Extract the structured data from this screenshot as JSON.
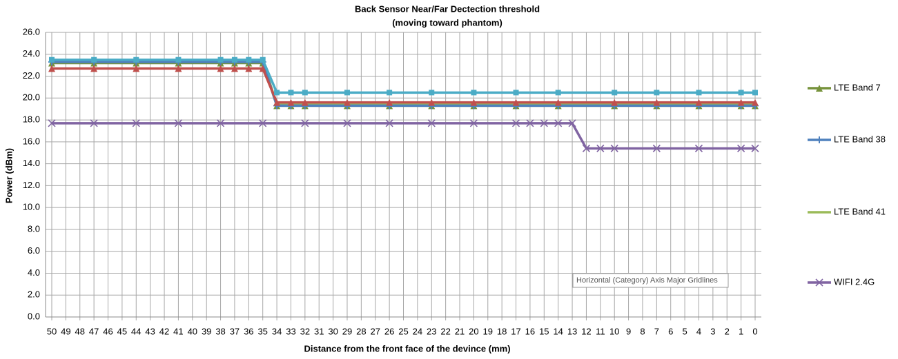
{
  "chart_data": {
    "type": "line",
    "title": "Back Sensor Near/Far Dectection threshold",
    "subtitle": "(moving toward phantom)",
    "x_label": "Distance from the front face of the devince (mm)",
    "y_label": "Power (dBm)",
    "tooltip": "Horizontal (Category) Axis Major Gridlines",
    "grid": true,
    "xlim": [
      50,
      0
    ],
    "xticks": [
      50,
      49,
      48,
      47,
      46,
      45,
      44,
      43,
      42,
      41,
      40,
      39,
      38,
      37,
      36,
      35,
      34,
      33,
      32,
      31,
      30,
      29,
      28,
      27,
      26,
      25,
      24,
      23,
      22,
      21,
      20,
      19,
      18,
      17,
      16,
      15,
      14,
      13,
      12,
      11,
      10,
      9,
      8,
      7,
      6,
      5,
      4,
      3,
      2,
      1,
      0
    ],
    "ylim": [
      0,
      26
    ],
    "yticks": [
      {
        "value": 0,
        "label": "0.0"
      },
      {
        "value": 2,
        "label": "2.0"
      },
      {
        "value": 4,
        "label": "4.0"
      },
      {
        "value": 6,
        "label": "6.0"
      },
      {
        "value": 8,
        "label": "8.0"
      },
      {
        "value": 10,
        "label": "10.0"
      },
      {
        "value": 12,
        "label": "12.0"
      },
      {
        "value": 14,
        "label": "14.0"
      },
      {
        "value": 16,
        "label": "16.0"
      },
      {
        "value": 18,
        "label": "18.0"
      },
      {
        "value": 20,
        "label": "20.0"
      },
      {
        "value": 22,
        "label": "22.0"
      },
      {
        "value": 24,
        "label": "24.0"
      },
      {
        "value": 26,
        "label": "26.0"
      }
    ],
    "series": [
      {
        "name": "LTE Band 41",
        "color": "#9bbb59",
        "marker": "none",
        "x": [
          50,
          47,
          44,
          41,
          38,
          37,
          36,
          35,
          34,
          33,
          32,
          29,
          26,
          23,
          20,
          17,
          14,
          10,
          7,
          4,
          1,
          0
        ],
        "values": [
          23.4,
          23.4,
          23.4,
          23.4,
          23.4,
          23.4,
          23.4,
          23.4,
          19.4,
          19.4,
          19.4,
          19.4,
          19.4,
          19.4,
          19.4,
          19.4,
          19.4,
          19.4,
          19.4,
          19.4,
          19.4,
          19.4
        ]
      },
      {
        "name": "LTE Band 7",
        "color": "#77933c",
        "marker": "triangle",
        "x": [
          50,
          47,
          44,
          41,
          38,
          37,
          36,
          35,
          34,
          33,
          32,
          29,
          26,
          23,
          20,
          17,
          14,
          10,
          7,
          4,
          1,
          0
        ],
        "values": [
          23.2,
          23.2,
          23.2,
          23.2,
          23.2,
          23.2,
          23.2,
          23.2,
          19.3,
          19.3,
          19.3,
          19.3,
          19.3,
          19.3,
          19.3,
          19.3,
          19.3,
          19.3,
          19.3,
          19.3,
          19.3,
          19.3
        ]
      },
      {
        "name": "LTE Band 38",
        "color": "#4f81bd",
        "marker": "plus",
        "x": [
          50,
          47,
          44,
          41,
          38,
          37,
          36,
          35,
          34,
          33,
          32,
          29,
          26,
          23,
          20,
          17,
          14,
          10,
          7,
          4,
          1,
          0
        ],
        "values": [
          23.3,
          23.3,
          23.3,
          23.3,
          23.3,
          23.3,
          23.3,
          23.3,
          19.3,
          19.3,
          19.3,
          19.3,
          19.3,
          19.3,
          19.3,
          19.3,
          19.3,
          19.3,
          19.3,
          19.3,
          19.3,
          19.3
        ]
      },
      {
        "color": "#c0504d",
        "marker": "triangle",
        "x": [
          50,
          47,
          44,
          41,
          38,
          37,
          36,
          35,
          34,
          33,
          32,
          29,
          26,
          23,
          20,
          17,
          14,
          10,
          7,
          4,
          1,
          0
        ],
        "values": [
          22.7,
          22.7,
          22.7,
          22.7,
          22.7,
          22.7,
          22.7,
          22.7,
          19.6,
          19.6,
          19.6,
          19.6,
          19.6,
          19.6,
          19.6,
          19.6,
          19.6,
          19.6,
          19.6,
          19.6,
          19.6,
          19.6
        ]
      },
      {
        "color": "#4bacc6",
        "marker": "square",
        "x": [
          50,
          47,
          44,
          41,
          38,
          37,
          36,
          35,
          34,
          33,
          32,
          29,
          26,
          23,
          20,
          17,
          14,
          10,
          7,
          4,
          1,
          0
        ],
        "values": [
          23.5,
          23.5,
          23.5,
          23.5,
          23.5,
          23.5,
          23.5,
          23.5,
          20.5,
          20.5,
          20.5,
          20.5,
          20.5,
          20.5,
          20.5,
          20.5,
          20.5,
          20.5,
          20.5,
          20.5,
          20.5,
          20.5
        ]
      },
      {
        "name": "WIFI 2.4G",
        "color": "#8064a2",
        "marker": "x",
        "x": [
          50,
          47,
          44,
          41,
          38,
          35,
          32,
          29,
          26,
          23,
          20,
          17,
          16,
          15,
          14,
          13,
          12,
          11,
          10,
          7,
          4,
          1,
          0
        ],
        "values": [
          17.7,
          17.7,
          17.7,
          17.7,
          17.7,
          17.7,
          17.7,
          17.7,
          17.7,
          17.7,
          17.7,
          17.7,
          17.7,
          17.7,
          17.7,
          17.7,
          15.4,
          15.4,
          15.4,
          15.4,
          15.4,
          15.4,
          15.4
        ]
      }
    ]
  }
}
